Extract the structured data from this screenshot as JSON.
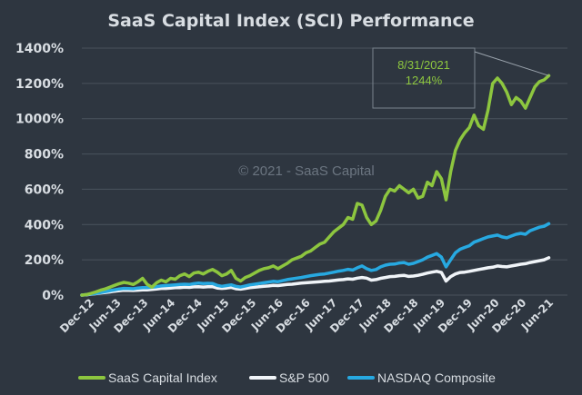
{
  "chart_data": {
    "type": "line",
    "title": "SaaS Capital Index (SCI) Performance",
    "watermark": "© 2021 - SaaS Capital",
    "annotation": {
      "date": "8/31/2021",
      "value": "1244%"
    },
    "xlabel": "",
    "ylabel": "",
    "ylim": [
      0,
      1400
    ],
    "y_ticks": [
      0,
      200,
      400,
      600,
      800,
      1000,
      1200,
      1400
    ],
    "y_tick_labels": [
      "0%",
      "200%",
      "400%",
      "600%",
      "800%",
      "1000%",
      "1200%",
      "1400%"
    ],
    "x_tick_labels": [
      "Dec-12",
      "Jun-13",
      "Dec-13",
      "Jun-14",
      "Dec-14",
      "Jun-15",
      "Dec-15",
      "Jun-16",
      "Dec-16",
      "Jun-17",
      "Dec-17",
      "Jun-18",
      "Dec-18",
      "Jun-19",
      "Dec-19",
      "Jun-20",
      "Dec-20",
      "Jun-21"
    ],
    "x_range": [
      0,
      104
    ],
    "grid": true,
    "legend_position": "bottom",
    "series": [
      {
        "name": "SaaS Capital Index",
        "color": "#8dc63f",
        "values": [
          0,
          3,
          10,
          18,
          28,
          35,
          45,
          55,
          65,
          72,
          68,
          60,
          75,
          95,
          60,
          45,
          70,
          85,
          75,
          95,
          90,
          110,
          120,
          105,
          125,
          130,
          120,
          135,
          145,
          130,
          110,
          120,
          140,
          95,
          80,
          100,
          110,
          125,
          140,
          150,
          155,
          165,
          150,
          165,
          180,
          200,
          210,
          220,
          240,
          250,
          270,
          290,
          300,
          330,
          360,
          380,
          400,
          440,
          430,
          520,
          510,
          440,
          400,
          420,
          480,
          560,
          600,
          590,
          620,
          600,
          580,
          600,
          550,
          560,
          640,
          620,
          700,
          660,
          540,
          700,
          820,
          880,
          920,
          950,
          1020,
          960,
          940,
          1050,
          1200,
          1230,
          1200,
          1150,
          1080,
          1120,
          1100,
          1060,
          1120,
          1180,
          1210,
          1220,
          1244
        ]
      },
      {
        "name": "S&P 500",
        "color": "#f0f4f8",
        "values": [
          0,
          2,
          5,
          8,
          12,
          15,
          18,
          22,
          25,
          28,
          27,
          26,
          28,
          30,
          30,
          32,
          35,
          38,
          38,
          40,
          42,
          42,
          45,
          44,
          47,
          48,
          46,
          48,
          48,
          40,
          38,
          40,
          44,
          36,
          34,
          38,
          42,
          45,
          48,
          50,
          52,
          55,
          54,
          57,
          60,
          62,
          65,
          68,
          70,
          72,
          74,
          76,
          78,
          80,
          83,
          86,
          88,
          92,
          90,
          96,
          100,
          96,
          85,
          88,
          95,
          100,
          105,
          106,
          110,
          112,
          106,
          108,
          112,
          118,
          125,
          130,
          135,
          128,
          80,
          105,
          120,
          128,
          130,
          135,
          140,
          145,
          150,
          155,
          158,
          165,
          162,
          160,
          165,
          170,
          175,
          178,
          185,
          190,
          195,
          200,
          212
        ]
      },
      {
        "name": "NASDAQ Composite",
        "color": "#27a9e1",
        "values": [
          0,
          3,
          6,
          10,
          15,
          20,
          25,
          30,
          35,
          38,
          37,
          36,
          40,
          42,
          42,
          45,
          48,
          52,
          54,
          56,
          58,
          60,
          62,
          60,
          65,
          68,
          66,
          67,
          66,
          55,
          50,
          54,
          58,
          50,
          46,
          52,
          58,
          62,
          66,
          70,
          74,
          78,
          76,
          82,
          88,
          92,
          96,
          100,
          105,
          110,
          114,
          118,
          120,
          125,
          130,
          136,
          140,
          146,
          142,
          155,
          165,
          150,
          140,
          145,
          160,
          170,
          175,
          176,
          182,
          185,
          175,
          180,
          190,
          200,
          215,
          225,
          235,
          215,
          160,
          200,
          240,
          260,
          270,
          280,
          300,
          310,
          320,
          330,
          335,
          340,
          330,
          325,
          335,
          345,
          350,
          345,
          365,
          375,
          385,
          390,
          405
        ]
      }
    ]
  }
}
